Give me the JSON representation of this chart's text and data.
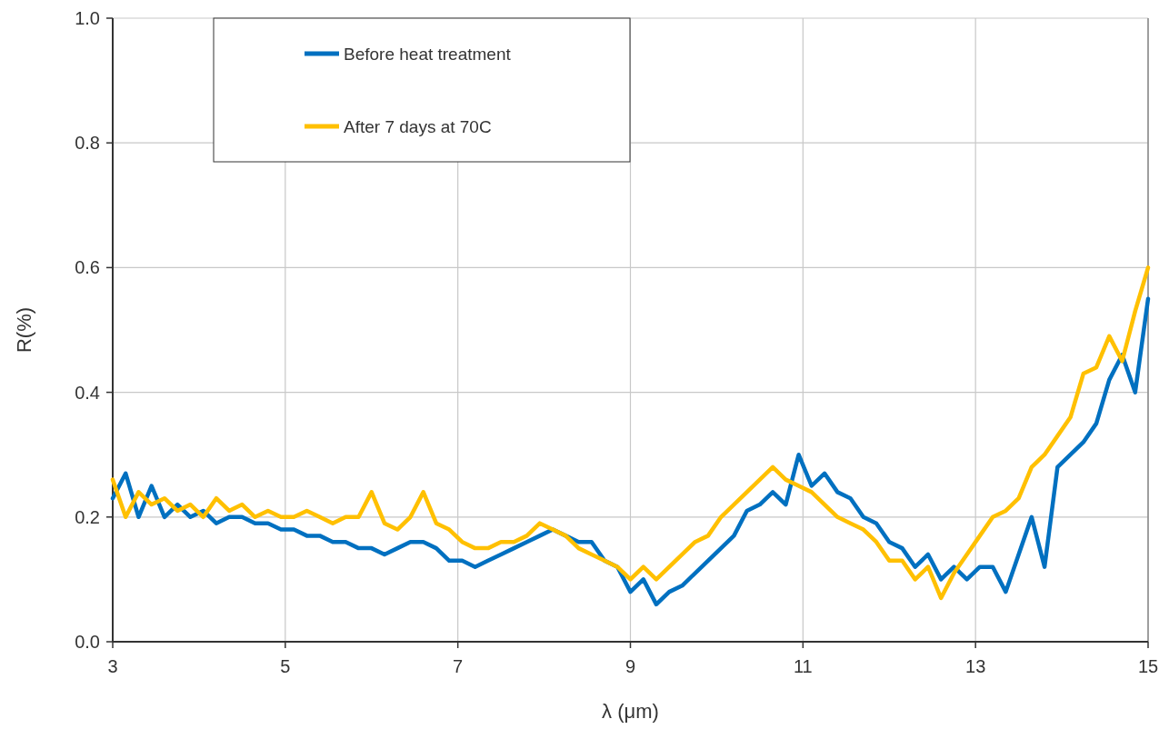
{
  "chart_data": {
    "type": "line",
    "xlabel": "λ (μm)",
    "ylabel": "R(%)",
    "x": [
      3,
      3.15,
      3.3,
      3.45,
      3.6,
      3.75,
      3.9,
      4.05,
      4.2,
      4.35,
      4.5,
      4.65,
      4.8,
      4.95,
      5.1,
      5.25,
      5.4,
      5.55,
      5.7,
      5.85,
      6,
      6.15,
      6.3,
      6.45,
      6.6,
      6.75,
      6.9,
      7.05,
      7.2,
      7.35,
      7.5,
      7.65,
      7.8,
      7.95,
      8.1,
      8.25,
      8.4,
      8.55,
      8.7,
      8.85,
      9,
      9.15,
      9.3,
      9.45,
      9.6,
      9.75,
      9.9,
      10.05,
      10.2,
      10.35,
      10.5,
      10.65,
      10.8,
      10.95,
      11.1,
      11.25,
      11.4,
      11.55,
      11.7,
      11.85,
      12,
      12.15,
      12.3,
      12.45,
      12.6,
      12.75,
      12.9,
      13.05,
      13.2,
      13.35,
      13.5,
      13.65,
      13.8,
      13.95,
      14.1,
      14.25,
      14.4,
      14.55,
      14.7,
      14.85,
      15
    ],
    "series": [
      {
        "name": "Before heat treatment",
        "color": "#0070c0",
        "values": [
          0.23,
          0.27,
          0.2,
          0.25,
          0.2,
          0.22,
          0.2,
          0.21,
          0.19,
          0.2,
          0.2,
          0.19,
          0.19,
          0.18,
          0.18,
          0.17,
          0.17,
          0.16,
          0.16,
          0.15,
          0.15,
          0.14,
          0.15,
          0.16,
          0.16,
          0.15,
          0.13,
          0.13,
          0.12,
          0.13,
          0.14,
          0.15,
          0.16,
          0.17,
          0.18,
          0.17,
          0.16,
          0.16,
          0.13,
          0.12,
          0.08,
          0.1,
          0.06,
          0.08,
          0.09,
          0.11,
          0.13,
          0.15,
          0.17,
          0.21,
          0.22,
          0.24,
          0.22,
          0.3,
          0.25,
          0.27,
          0.24,
          0.23,
          0.2,
          0.19,
          0.16,
          0.15,
          0.12,
          0.14,
          0.1,
          0.12,
          0.1,
          0.12,
          0.12,
          0.08,
          0.14,
          0.2,
          0.12,
          0.28,
          0.3,
          0.32,
          0.35,
          0.42,
          0.46,
          0.4,
          0.55
        ]
      },
      {
        "name": "After 7 days at 70C",
        "color": "#ffc000",
        "values": [
          0.26,
          0.2,
          0.24,
          0.22,
          0.23,
          0.21,
          0.22,
          0.2,
          0.23,
          0.21,
          0.22,
          0.2,
          0.21,
          0.2,
          0.2,
          0.21,
          0.2,
          0.19,
          0.2,
          0.2,
          0.24,
          0.19,
          0.18,
          0.2,
          0.24,
          0.19,
          0.18,
          0.16,
          0.15,
          0.15,
          0.16,
          0.16,
          0.17,
          0.19,
          0.18,
          0.17,
          0.15,
          0.14,
          0.13,
          0.12,
          0.1,
          0.12,
          0.1,
          0.12,
          0.14,
          0.16,
          0.17,
          0.2,
          0.22,
          0.24,
          0.26,
          0.28,
          0.26,
          0.25,
          0.24,
          0.22,
          0.2,
          0.19,
          0.18,
          0.16,
          0.13,
          0.13,
          0.1,
          0.12,
          0.07,
          0.11,
          0.14,
          0.17,
          0.2,
          0.21,
          0.23,
          0.28,
          0.3,
          0.33,
          0.36,
          0.43,
          0.44,
          0.49,
          0.45,
          0.53,
          0.6
        ]
      }
    ],
    "xlim": [
      3,
      15
    ],
    "xticks": [
      3,
      5,
      7,
      9,
      11,
      13,
      15
    ],
    "ylim": [
      0,
      1
    ],
    "yticks": [
      {
        "value": 0,
        "label": "0.0"
      },
      {
        "value": 0.2,
        "label": "0.2"
      },
      {
        "value": 0.4,
        "label": "0.4"
      },
      {
        "value": 0.6,
        "label": "0.6"
      },
      {
        "value": 0.8,
        "label": "0.8"
      },
      {
        "value": 1,
        "label": "1.0"
      }
    ],
    "grid": true,
    "legend": "top left",
    "line_style": "solid",
    "marker": "none"
  }
}
